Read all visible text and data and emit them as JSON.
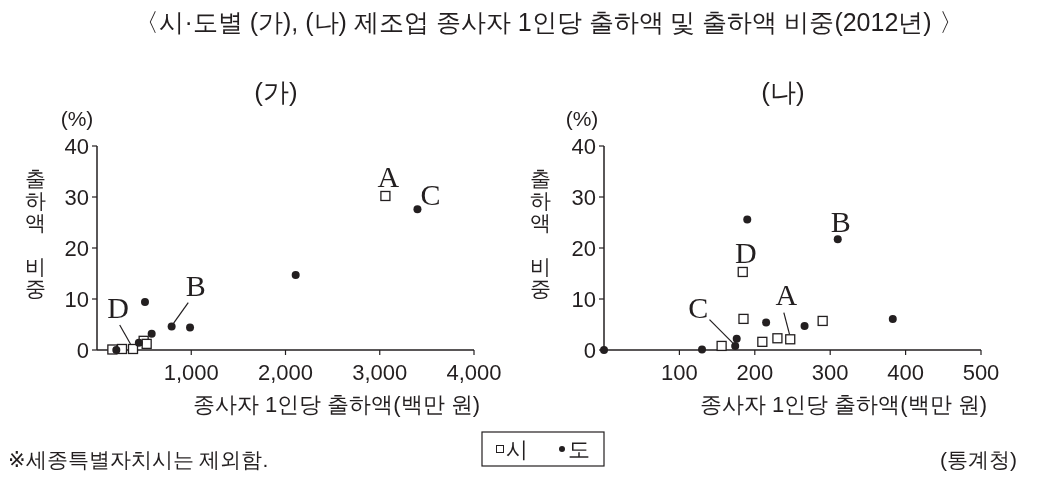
{
  "chart_data": [
    {
      "type": "scatter",
      "title": "〈시·도별 (가), (나) 제조업 종사자 1인당 출하액 및 출하액 비중(2012년) 〉",
      "subtitle": "(가)",
      "xlabel": "종사자 1인당 출하액(백만 원)",
      "ylabel": "출하액 비중",
      "xlim": [
        0,
        4000
      ],
      "xticks": [
        {
          "value": 1000,
          "label": "1,000"
        },
        {
          "value": 2000,
          "label": "2,000"
        },
        {
          "value": 3000,
          "label": "3,000"
        },
        {
          "value": 4000,
          "label": "4,000"
        }
      ],
      "ylim": [
        0,
        40
      ],
      "yticks": [
        0,
        10,
        20,
        30,
        40
      ],
      "legend": "bottom",
      "series": [
        {
          "name": "시",
          "color": "#231f20",
          "marker": "square",
          "x": [
            163,
            265,
            382,
            495,
            527,
            3060
          ],
          "values": [
            0.1,
            0.2,
            0.2,
            1.8,
            1.2,
            30.2
          ]
        },
        {
          "name": "도",
          "color": "#231f20",
          "marker": "circle",
          "x": [
            205,
            444,
            509,
            580,
            792,
            987,
            2108,
            3400
          ],
          "values": [
            0,
            1.4,
            9.4,
            3.2,
            4.6,
            4.4,
            14.7,
            27.6
          ]
        }
      ],
      "annotations": [
        "(%)",
        "※세종특별자치시는 제외함.",
        {
          "text": "A",
          "x": 3060,
          "y": 30.2
        },
        {
          "text": "B",
          "x": 792,
          "y": 4.6
        },
        {
          "text": "C",
          "x": 3400,
          "y": 27.6
        },
        {
          "text": "D",
          "x": 382,
          "y": 0.2
        }
      ]
    },
    {
      "type": "scatter",
      "subtitle": "(나)",
      "xlabel": "종사자 1인당 출하액(백만 원)",
      "ylabel": "출하액 비중",
      "xlim": [
        0,
        500
      ],
      "xticks": [
        100,
        200,
        300,
        400,
        500
      ],
      "ylim": [
        0,
        40
      ],
      "yticks": [
        0,
        10,
        20,
        30,
        40
      ],
      "series": [
        {
          "name": "시",
          "color": "#231f20",
          "marker": "square",
          "x": [
            156,
            184,
            185,
            210,
            230,
            247,
            290
          ],
          "values": [
            0.8,
            15.3,
            6.1,
            1.6,
            2.3,
            2.1,
            5.7
          ]
        },
        {
          "name": "도",
          "color": "#231f20",
          "marker": "circle",
          "x": [
            0,
            130,
            174,
            176,
            190,
            215,
            266,
            310,
            383
          ],
          "values": [
            0,
            0.1,
            0.8,
            2.2,
            25.6,
            5.4,
            4.7,
            21.7,
            6.1
          ]
        }
      ],
      "annotations": [
        "(%)",
        "(통계청)",
        {
          "text": "A",
          "x": 247,
          "y": 2.1
        },
        {
          "text": "B",
          "x": 310,
          "y": 21.7
        },
        {
          "text": "C",
          "x": 174,
          "y": 0.8
        },
        {
          "text": "D",
          "x": 184,
          "y": 15.3
        }
      ]
    }
  ]
}
